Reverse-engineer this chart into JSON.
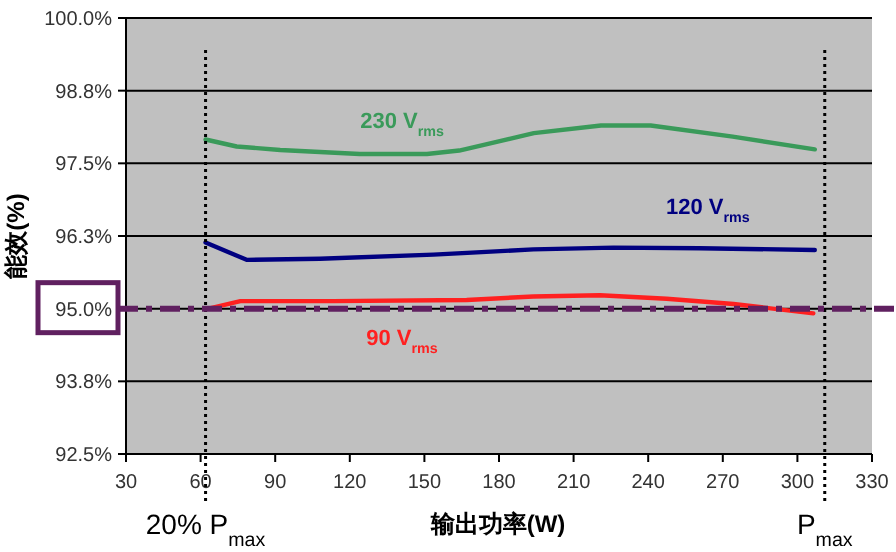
{
  "chart_data": {
    "type": "line",
    "xlabel": "输出功率(W)",
    "ylabel": "能效(%)",
    "xlim": [
      30,
      330
    ],
    "xticks": [
      30,
      60,
      90,
      120,
      150,
      180,
      210,
      240,
      270,
      300,
      330
    ],
    "ylim": [
      92.5,
      100
    ],
    "yticks": [
      {
        "value": 92.5,
        "label": "92.5%"
      },
      {
        "value": 93.75,
        "label": "93.8%"
      },
      {
        "value": 95,
        "label": "95.0%"
      },
      {
        "value": 96.25,
        "label": "96.3%"
      },
      {
        "value": 97.5,
        "label": "97.5%"
      },
      {
        "value": 98.75,
        "label": "98.8%"
      },
      {
        "value": 100,
        "label": "100.0%"
      }
    ],
    "grid": "y",
    "series": [
      {
        "name": "230 V$_{rms}$",
        "color": "#3a9a5a",
        "x": [
          62,
          74.5,
          92,
          124,
          151,
          164,
          194,
          221,
          241,
          274,
          307
        ],
        "values": [
          97.91,
          97.79,
          97.73,
          97.66,
          97.66,
          97.72,
          98.02,
          98.15,
          98.15,
          97.96,
          97.74
        ]
      },
      {
        "name": "120 V$_{rms}$",
        "color": "#000080",
        "x": [
          62,
          78.5,
          108,
          153.6,
          193.8,
          226,
          260.8,
          307
        ],
        "values": [
          96.14,
          95.84,
          95.86,
          95.93,
          96.02,
          96.05,
          96.04,
          96.01
        ]
      },
      {
        "name": "90 V$_{rms}$",
        "color": "#ff2020",
        "x": [
          63.2,
          76,
          113.4,
          167,
          193.8,
          220.6,
          247.4,
          274.3,
          306.4
        ],
        "values": [
          95.0,
          95.13,
          95.13,
          95.15,
          95.21,
          95.23,
          95.17,
          95.08,
          94.92
        ]
      }
    ],
    "ref_lines": [
      {
        "axis": "x",
        "value": 62,
        "label": "20% P$_{max}$",
        "color": "#000000",
        "line_style": "dotted"
      },
      {
        "axis": "x",
        "value": 311,
        "label": "P$_{max}$",
        "color": "#000000",
        "line_style": "dotted"
      },
      {
        "axis": "y",
        "value": 95,
        "color": "#602060",
        "line_style": "dashed"
      }
    ]
  }
}
